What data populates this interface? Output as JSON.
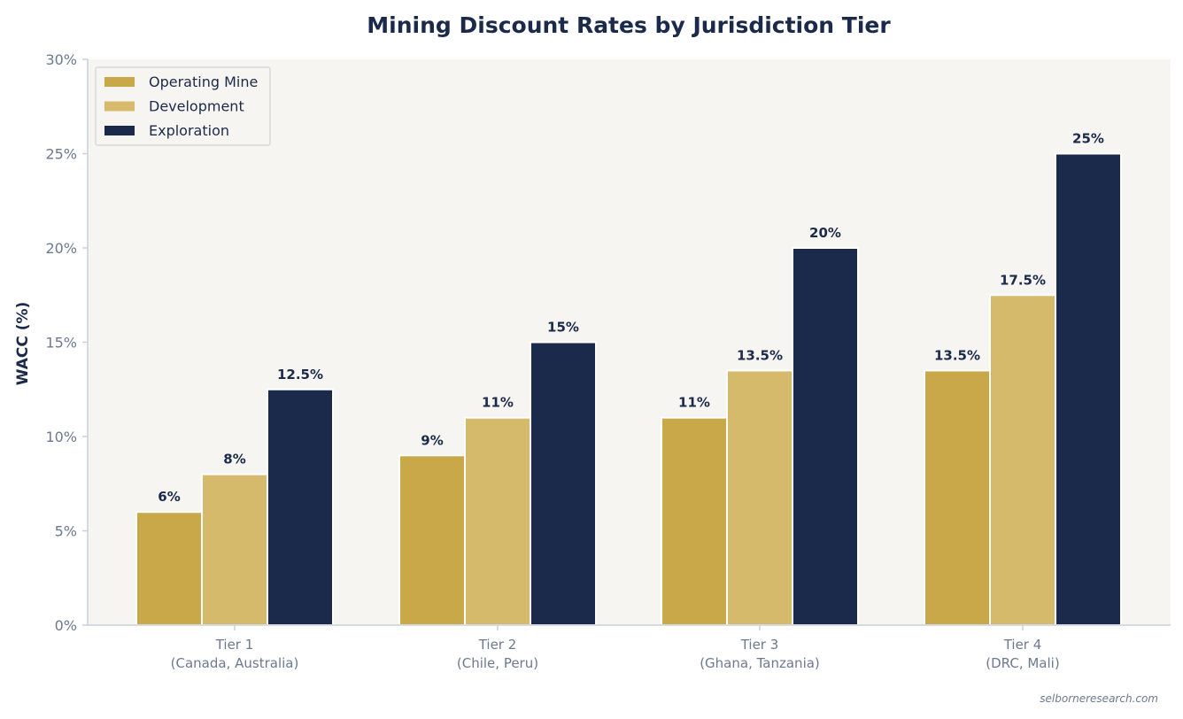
{
  "chart_data": {
    "type": "bar",
    "title": "Mining Discount Rates by Jurisdiction Tier",
    "xlabel": "",
    "ylabel": "WACC (%)",
    "ylim": [
      0,
      30
    ],
    "yticks": [
      0,
      5,
      10,
      15,
      20,
      25,
      30
    ],
    "ytick_labels": [
      "0%",
      "5%",
      "10%",
      "15%",
      "20%",
      "25%",
      "30%"
    ],
    "categories": [
      [
        "Tier 1",
        "(Canada, Australia)"
      ],
      [
        "Tier 2",
        "(Chile, Peru)"
      ],
      [
        "Tier 3",
        "(Ghana, Tanzania)"
      ],
      [
        "Tier 4",
        "(DRC, Mali)"
      ]
    ],
    "series": [
      {
        "name": "Operating Mine",
        "color": "#c9a84a",
        "values": [
          6,
          9,
          11,
          13.5
        ],
        "labels": [
          "6%",
          "9%",
          "11%",
          "13.5%"
        ]
      },
      {
        "name": "Development",
        "color": "#d4ba6a",
        "values": [
          8,
          11,
          13.5,
          17.5
        ],
        "labels": [
          "8%",
          "11%",
          "13.5%",
          "17.5%"
        ]
      },
      {
        "name": "Exploration",
        "color": "#1b2a4a",
        "values": [
          12.5,
          15,
          20,
          25
        ],
        "labels": [
          "12.5%",
          "15%",
          "20%",
          "25%"
        ]
      }
    ],
    "legend_position": "top-left",
    "grid": false,
    "plot_background": "#f7f5f1",
    "source_note": "selborneresearch.com"
  }
}
